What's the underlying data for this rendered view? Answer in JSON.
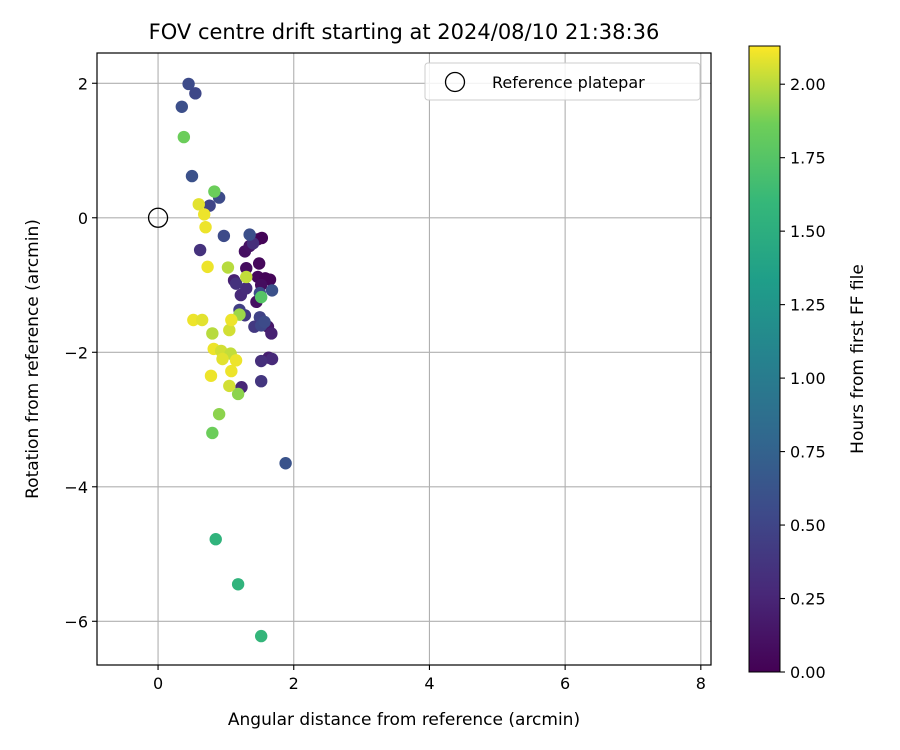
{
  "chart_data": {
    "type": "scatter",
    "title": "FOV centre drift starting at 2024/08/10 21:38:36",
    "xlabel": "Angular distance from reference (arcmin)",
    "ylabel": "Rotation from reference (arcmin)",
    "xlim": [
      -0.9,
      8.15
    ],
    "ylim": [
      -6.65,
      2.45
    ],
    "xticks": [
      0,
      2,
      4,
      6,
      8
    ],
    "yticks": [
      2,
      0,
      -2,
      -4,
      -6
    ],
    "xtick_labels": [
      "0",
      "2",
      "4",
      "6",
      "8"
    ],
    "ytick_labels": [
      "2",
      "0",
      "−2",
      "−4",
      "−6"
    ],
    "grid": true,
    "legend": {
      "placement": "top-right",
      "entries": [
        "Reference platepar"
      ]
    },
    "reference_point": {
      "x": 0,
      "y": 0,
      "label": "Reference platepar"
    },
    "colorbar": {
      "label": "Hours from first FF file",
      "range": [
        0,
        2.13
      ],
      "ticks": [
        0.0,
        0.25,
        0.5,
        0.75,
        1.0,
        1.25,
        1.5,
        1.75,
        2.0
      ],
      "tick_labels": [
        "0.00",
        "0.25",
        "0.50",
        "0.75",
        "1.00",
        "1.25",
        "1.50",
        "1.75",
        "2.00"
      ],
      "colormap": "viridis"
    },
    "points": [
      {
        "x": 1.47,
        "y": -0.32,
        "c": 0.05
      },
      {
        "x": 1.53,
        "y": -0.3,
        "c": 0.02
      },
      {
        "x": 1.49,
        "y": -0.68,
        "c": 0.05
      },
      {
        "x": 1.47,
        "y": -0.88,
        "c": 0.05
      },
      {
        "x": 1.58,
        "y": -0.9,
        "c": 0.03
      },
      {
        "x": 1.65,
        "y": -0.92,
        "c": 0.03
      },
      {
        "x": 1.52,
        "y": -1.0,
        "c": 0.08
      },
      {
        "x": 1.45,
        "y": -1.25,
        "c": 0.1
      },
      {
        "x": 1.3,
        "y": -0.75,
        "c": 0.08
      },
      {
        "x": 1.28,
        "y": -0.5,
        "c": 0.1
      },
      {
        "x": 1.35,
        "y": -0.42,
        "c": 0.12
      },
      {
        "x": 1.62,
        "y": -1.62,
        "c": 0.15
      },
      {
        "x": 1.67,
        "y": -1.72,
        "c": 0.22
      },
      {
        "x": 1.63,
        "y": -2.08,
        "c": 0.2
      },
      {
        "x": 1.68,
        "y": -2.1,
        "c": 0.28
      },
      {
        "x": 1.52,
        "y": -2.13,
        "c": 0.32
      },
      {
        "x": 1.23,
        "y": -2.52,
        "c": 0.25
      },
      {
        "x": 1.52,
        "y": -2.43,
        "c": 0.38
      },
      {
        "x": 1.22,
        "y": -1.15,
        "c": 0.28
      },
      {
        "x": 1.3,
        "y": -1.05,
        "c": 0.3
      },
      {
        "x": 1.12,
        "y": -0.93,
        "c": 0.22
      },
      {
        "x": 1.15,
        "y": -0.98,
        "c": 0.35
      },
      {
        "x": 1.4,
        "y": -0.38,
        "c": 0.32
      },
      {
        "x": 1.28,
        "y": -1.45,
        "c": 0.4
      },
      {
        "x": 1.2,
        "y": -1.37,
        "c": 0.45
      },
      {
        "x": 1.5,
        "y": -1.48,
        "c": 0.48
      },
      {
        "x": 1.42,
        "y": -1.62,
        "c": 0.4
      },
      {
        "x": 1.52,
        "y": -1.6,
        "c": 0.52
      },
      {
        "x": 1.57,
        "y": -1.55,
        "c": 0.55
      },
      {
        "x": 1.5,
        "y": -1.12,
        "c": 0.55
      },
      {
        "x": 1.68,
        "y": -1.08,
        "c": 0.6
      },
      {
        "x": 1.35,
        "y": -0.25,
        "c": 0.58
      },
      {
        "x": 0.97,
        "y": -0.27,
        "c": 0.55
      },
      {
        "x": 0.62,
        "y": -0.48,
        "c": 0.35
      },
      {
        "x": 0.76,
        "y": 0.18,
        "c": 0.5
      },
      {
        "x": 0.9,
        "y": 0.3,
        "c": 0.55
      },
      {
        "x": 0.5,
        "y": 0.62,
        "c": 0.6
      },
      {
        "x": 0.45,
        "y": 1.99,
        "c": 0.55
      },
      {
        "x": 0.55,
        "y": 1.85,
        "c": 0.52
      },
      {
        "x": 0.35,
        "y": 1.65,
        "c": 0.58
      },
      {
        "x": 1.88,
        "y": -3.65,
        "c": 0.62
      },
      {
        "x": 0.85,
        "y": -4.78,
        "c": 1.55
      },
      {
        "x": 1.18,
        "y": -5.45,
        "c": 1.55
      },
      {
        "x": 1.52,
        "y": -6.22,
        "c": 1.58
      },
      {
        "x": 1.52,
        "y": -1.18,
        "c": 1.75
      },
      {
        "x": 0.38,
        "y": 1.2,
        "c": 1.85
      },
      {
        "x": 0.83,
        "y": 0.39,
        "c": 1.85
      },
      {
        "x": 0.8,
        "y": -3.2,
        "c": 1.85
      },
      {
        "x": 0.9,
        "y": -2.92,
        "c": 1.92
      },
      {
        "x": 1.18,
        "y": -2.62,
        "c": 1.92
      },
      {
        "x": 1.2,
        "y": -1.44,
        "c": 1.95
      },
      {
        "x": 1.03,
        "y": -0.74,
        "c": 2.0
      },
      {
        "x": 1.3,
        "y": -0.88,
        "c": 2.02
      },
      {
        "x": 0.6,
        "y": 0.2,
        "c": 2.08
      },
      {
        "x": 0.68,
        "y": 0.05,
        "c": 2.1
      },
      {
        "x": 0.7,
        "y": -0.14,
        "c": 2.1
      },
      {
        "x": 0.73,
        "y": -0.73,
        "c": 2.1
      },
      {
        "x": 0.8,
        "y": -1.72,
        "c": 2.0
      },
      {
        "x": 0.52,
        "y": -1.52,
        "c": 2.1
      },
      {
        "x": 0.65,
        "y": -1.52,
        "c": 2.08
      },
      {
        "x": 1.05,
        "y": -1.67,
        "c": 2.05
      },
      {
        "x": 1.08,
        "y": -1.52,
        "c": 2.1
      },
      {
        "x": 0.82,
        "y": -1.95,
        "c": 2.1
      },
      {
        "x": 0.93,
        "y": -1.98,
        "c": 2.05
      },
      {
        "x": 1.07,
        "y": -2.02,
        "c": 2.02
      },
      {
        "x": 0.95,
        "y": -2.1,
        "c": 2.08
      },
      {
        "x": 1.15,
        "y": -2.12,
        "c": 2.1
      },
      {
        "x": 1.08,
        "y": -2.28,
        "c": 2.1
      },
      {
        "x": 0.78,
        "y": -2.35,
        "c": 2.1
      },
      {
        "x": 1.05,
        "y": -2.5,
        "c": 2.05
      }
    ]
  }
}
